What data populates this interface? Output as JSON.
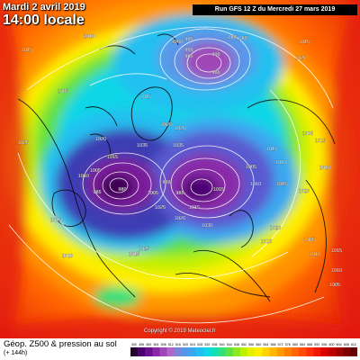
{
  "header": {
    "date": "Mardi 2 avril 2019",
    "time": "14:00 locale",
    "run": "Run GFS 12 Z du Mercredi 27 mars 2019"
  },
  "copyright": "Copyright © 2019 Meteociel.fr",
  "footer": {
    "title": "Géop. Z500 & pression au sol",
    "subtitle": "(+ 144h)"
  },
  "scale": {
    "labels": [
      "492",
      "496",
      "500",
      "504",
      "508",
      "512",
      "516",
      "520",
      "524",
      "528",
      "532",
      "536",
      "540",
      "544",
      "548",
      "552",
      "556",
      "560",
      "564",
      "568",
      "572",
      "576",
      "580",
      "584",
      "588",
      "592",
      "596",
      "600",
      "604",
      "608",
      "612"
    ],
    "colors": [
      "#2a0030",
      "#4a0070",
      "#6a1090",
      "#8a2aa8",
      "#a046b8",
      "#b066c8",
      "#7a84d8",
      "#5a96e8",
      "#3aa8f0",
      "#22c0f0",
      "#10d6e6",
      "#10e0b8",
      "#30e07a",
      "#60e040",
      "#90e820",
      "#c0f000",
      "#e8f000",
      "#ffee00",
      "#ffd200",
      "#ffb800",
      "#ff9c00",
      "#ff8000",
      "#ff6600",
      "#ff4c00",
      "#ff3000",
      "#f01800",
      "#dc0000",
      "#c00000",
      "#a00000",
      "#800000",
      "#600000"
    ]
  },
  "colors": {
    "low_core": "#3a0050",
    "deep_trough": "#7a1a9a",
    "trough": "#3c3cb4",
    "mid": "#14c8dc",
    "ridge": "#ffd400",
    "high": "#ff4600",
    "subtropics": "#e21a0c"
  },
  "pressure_labels": [
    {
      "text": "1005"
    },
    {
      "text": "995"
    },
    {
      "text": "1000"
    },
    {
      "text": "990"
    },
    {
      "text": "985"
    },
    {
      "text": "980"
    },
    {
      "text": "990"
    },
    {
      "text": "1005"
    },
    {
      "text": "1015"
    },
    {
      "text": "1020"
    },
    {
      "text": "1015"
    },
    {
      "text": "1010"
    },
    {
      "text": "1005"
    },
    {
      "text": "1015"
    },
    {
      "text": "1025"
    },
    {
      "text": "1035"
    },
    {
      "text": "1020"
    },
    {
      "text": "1015"
    },
    {
      "text": "1010"
    },
    {
      "text": "1005"
    },
    {
      "text": "985"
    },
    {
      "text": "980"
    },
    {
      "text": "1005"
    },
    {
      "text": "990"
    },
    {
      "text": "985"
    },
    {
      "text": "1015"
    },
    {
      "text": "1020"
    },
    {
      "text": "1025"
    },
    {
      "text": "1030"
    },
    {
      "text": "1015"
    },
    {
      "text": "1020"
    },
    {
      "text": "1005"
    },
    {
      "text": "1010"
    },
    {
      "text": "1035"
    },
    {
      "text": "1015"
    },
    {
      "text": "1010"
    },
    {
      "text": "1015"
    },
    {
      "text": "1005"
    },
    {
      "text": "1020"
    },
    {
      "text": "1015"
    },
    {
      "text": "1010"
    },
    {
      "text": "1005"
    },
    {
      "text": "1010"
    },
    {
      "text": "1015"
    },
    {
      "text": "1010"
    },
    {
      "text": "1005"
    },
    {
      "text": "1020"
    },
    {
      "text": "1015"
    },
    {
      "text": "1025"
    },
    {
      "text": "1015"
    },
    {
      "text": "1010"
    },
    {
      "text": "1015"
    },
    {
      "text": "1020"
    }
  ]
}
